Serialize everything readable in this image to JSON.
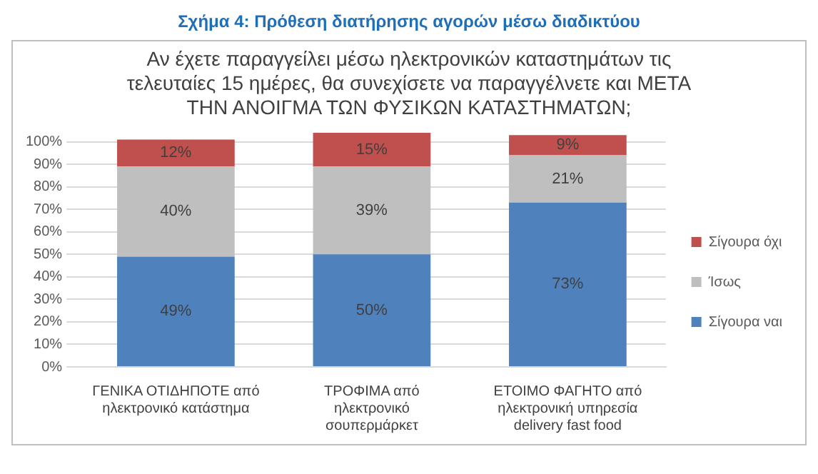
{
  "chart_data": {
    "type": "bar",
    "stacked": true,
    "title": "Σχήμα 4: Πρόθεση διατήρησης  αγορών μέσω διαδικτύου",
    "subtitle": "Αν έχετε παραγγείλει μέσω ηλεκτρονικών καταστημάτων τις τελευταίες 15 ημέρες, θα συνεχίσετε να παραγγέλνετε και ΜΕΤΑ ΤΗΝ ΑΝΟΙΓΜΑ ΤΩΝ ΦΥΣΙΚΩΝ ΚΑΤΑΣΤΗΜΑΤΩΝ;",
    "categories": [
      "ΓΕΝΙΚΑ ΟΤΙΔΗΠΟΤΕ από ηλεκτρονικό κατάστημα",
      "ΤΡΟΦΙΜΑ από ηλεκτρονικό σουπερμάρκετ",
      "ΕΤΟΙΜΟ ΦΑΓΗΤΟ από ηλεκτρονική υπηρεσία delivery fast food"
    ],
    "series": [
      {
        "name": "Σίγουρα ναι",
        "color": "#4f81bd",
        "values": [
          49,
          50,
          73
        ],
        "value_labels": [
          "49%",
          "50%",
          "73%"
        ]
      },
      {
        "name": "Ίσως",
        "color": "#bfbfbf",
        "values": [
          40,
          39,
          21
        ],
        "value_labels": [
          "40%",
          "39%",
          "21%"
        ]
      },
      {
        "name": "Σίγουρα όχι",
        "color": "#c0504d",
        "values": [
          12,
          15,
          9
        ],
        "value_labels": [
          "12%",
          "15%",
          "9%"
        ]
      }
    ],
    "ylim": [
      0,
      104
    ],
    "yticks": [
      {
        "value": 0,
        "label": "0%"
      },
      {
        "value": 10,
        "label": "10%"
      },
      {
        "value": 20,
        "label": "20%"
      },
      {
        "value": 30,
        "label": "30%"
      },
      {
        "value": 40,
        "label": "40%"
      },
      {
        "value": 50,
        "label": "50%"
      },
      {
        "value": 60,
        "label": "60%"
      },
      {
        "value": 70,
        "label": "70%"
      },
      {
        "value": 80,
        "label": "80%"
      },
      {
        "value": 90,
        "label": "90%"
      },
      {
        "value": 100,
        "label": "100%"
      }
    ],
    "grid": "y",
    "legend": "right"
  }
}
